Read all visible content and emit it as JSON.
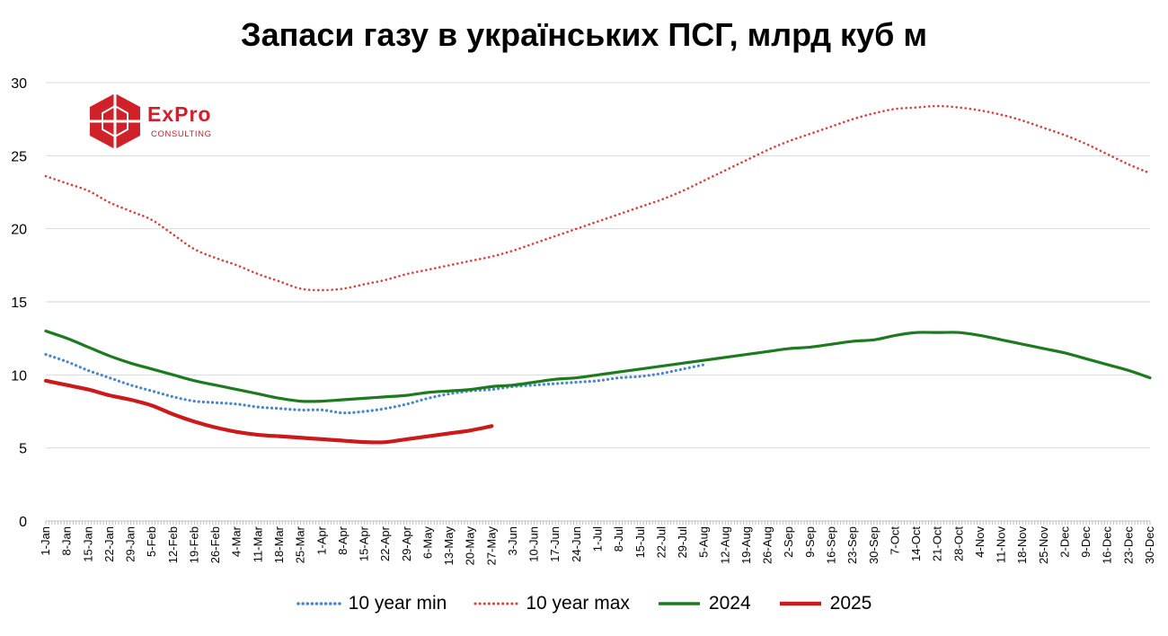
{
  "chart_data": {
    "type": "line",
    "title": "Запаси газу в українських ПСГ, млрд куб м",
    "ylim": [
      0,
      30
    ],
    "yticks": [
      "0",
      "5",
      "10",
      "15",
      "20",
      "25",
      "30"
    ],
    "grid": true,
    "legend_position": "bottom",
    "x_tick_labels": [
      "1-Jan",
      "8-Jan",
      "15-Jan",
      "22-Jan",
      "29-Jan",
      "5-Feb",
      "12-Feb",
      "19-Feb",
      "26-Feb",
      "4-Mar",
      "11-Mar",
      "18-Mar",
      "25-Mar",
      "1-Apr",
      "8-Apr",
      "15-Apr",
      "22-Apr",
      "29-Apr",
      "6-May",
      "13-May",
      "20-May",
      "27-May",
      "3-Jun",
      "10-Jun",
      "17-Jun",
      "24-Jun",
      "1-Jul",
      "8-Jul",
      "15-Jul",
      "22-Jul",
      "29-Jul",
      "5-Aug",
      "12-Aug",
      "19-Aug",
      "26-Aug",
      "2-Sep",
      "9-Sep",
      "16-Sep",
      "23-Sep",
      "30-Sep",
      "7-Oct",
      "14-Oct",
      "21-Oct",
      "28-Oct",
      "4-Nov",
      "11-Nov",
      "18-Nov",
      "25-Nov",
      "2-Dec",
      "9-Dec",
      "16-Dec",
      "23-Dec",
      "30-Dec"
    ],
    "series": [
      {
        "name": "10 year min",
        "color": "#4a86c8",
        "style": "dotted",
        "x": [
          "1-Jan",
          "8-Jan",
          "15-Jan",
          "22-Jan",
          "29-Jan",
          "5-Feb",
          "12-Feb",
          "19-Feb",
          "26-Feb",
          "4-Mar",
          "11-Mar",
          "18-Mar",
          "25-Mar",
          "1-Apr",
          "8-Apr",
          "15-Apr",
          "22-Apr",
          "29-Apr",
          "6-May",
          "13-May",
          "20-May",
          "27-May",
          "3-Jun",
          "10-Jun",
          "17-Jun",
          "24-Jun",
          "1-Jul",
          "8-Jul",
          "15-Jul",
          "22-Jul",
          "29-Jul",
          "5-Aug"
        ],
        "values": [
          11.4,
          10.9,
          10.3,
          9.8,
          9.3,
          8.9,
          8.5,
          8.2,
          8.1,
          8.0,
          7.8,
          7.7,
          7.6,
          7.6,
          7.4,
          7.5,
          7.7,
          8.0,
          8.4,
          8.7,
          8.9,
          9.0,
          9.2,
          9.3,
          9.4,
          9.5,
          9.6,
          9.8,
          9.9,
          10.1,
          10.4,
          10.7
        ]
      },
      {
        "name": "10 year max",
        "color": "#d84040",
        "style": "dotted",
        "x": [
          "1-Jan",
          "8-Jan",
          "15-Jan",
          "22-Jan",
          "29-Jan",
          "5-Feb",
          "12-Feb",
          "19-Feb",
          "26-Feb",
          "4-Mar",
          "11-Mar",
          "18-Mar",
          "25-Mar",
          "1-Apr",
          "8-Apr",
          "15-Apr",
          "22-Apr",
          "29-Apr",
          "6-May",
          "13-May",
          "20-May",
          "27-May",
          "3-Jun",
          "10-Jun",
          "17-Jun",
          "24-Jun",
          "1-Jul",
          "8-Jul",
          "15-Jul",
          "22-Jul",
          "29-Jul",
          "5-Aug",
          "12-Aug",
          "19-Aug",
          "26-Aug",
          "2-Sep",
          "9-Sep",
          "16-Sep",
          "23-Sep",
          "30-Sep",
          "7-Oct",
          "14-Oct",
          "21-Oct",
          "28-Oct",
          "4-Nov",
          "11-Nov",
          "18-Nov",
          "25-Nov",
          "2-Dec",
          "9-Dec",
          "16-Dec",
          "23-Dec",
          "30-Dec"
        ],
        "values": [
          23.6,
          23.1,
          22.6,
          21.8,
          21.2,
          20.6,
          19.6,
          18.6,
          18.0,
          17.5,
          16.9,
          16.4,
          15.9,
          15.8,
          15.9,
          16.2,
          16.5,
          16.9,
          17.2,
          17.5,
          17.8,
          18.1,
          18.5,
          19.0,
          19.5,
          20.0,
          20.5,
          21.0,
          21.5,
          22.0,
          22.6,
          23.3,
          24.0,
          24.7,
          25.4,
          26.0,
          26.5,
          27.0,
          27.5,
          27.9,
          28.2,
          28.3,
          28.4,
          28.3,
          28.1,
          27.8,
          27.4,
          26.9,
          26.4,
          25.8,
          25.1,
          24.4,
          23.8
        ]
      },
      {
        "name": "2024",
        "color": "#1e7a1e",
        "style": "solid",
        "x": [
          "1-Jan",
          "8-Jan",
          "15-Jan",
          "22-Jan",
          "29-Jan",
          "5-Feb",
          "12-Feb",
          "19-Feb",
          "26-Feb",
          "4-Mar",
          "11-Mar",
          "18-Mar",
          "25-Mar",
          "1-Apr",
          "8-Apr",
          "15-Apr",
          "22-Apr",
          "29-Apr",
          "6-May",
          "13-May",
          "20-May",
          "27-May",
          "3-Jun",
          "10-Jun",
          "17-Jun",
          "24-Jun",
          "1-Jul",
          "8-Jul",
          "15-Jul",
          "22-Jul",
          "29-Jul",
          "5-Aug",
          "12-Aug",
          "19-Aug",
          "26-Aug",
          "2-Sep",
          "9-Sep",
          "16-Sep",
          "23-Sep",
          "30-Sep",
          "7-Oct",
          "14-Oct",
          "21-Oct",
          "28-Oct",
          "4-Nov",
          "11-Nov",
          "18-Nov",
          "25-Nov",
          "2-Dec",
          "9-Dec",
          "16-Dec",
          "23-Dec",
          "30-Dec"
        ],
        "values": [
          13.0,
          12.5,
          11.9,
          11.3,
          10.8,
          10.4,
          10.0,
          9.6,
          9.3,
          9.0,
          8.7,
          8.4,
          8.2,
          8.2,
          8.3,
          8.4,
          8.5,
          8.6,
          8.8,
          8.9,
          9.0,
          9.2,
          9.3,
          9.5,
          9.7,
          9.8,
          10.0,
          10.2,
          10.4,
          10.6,
          10.8,
          11.0,
          11.2,
          11.4,
          11.6,
          11.8,
          11.9,
          12.1,
          12.3,
          12.4,
          12.7,
          12.9,
          12.9,
          12.9,
          12.7,
          12.4,
          12.1,
          11.8,
          11.5,
          11.1,
          10.7,
          10.3,
          9.8
        ]
      },
      {
        "name": "2025",
        "color": "#cc1a1a",
        "style": "solid",
        "x": [
          "1-Jan",
          "8-Jan",
          "15-Jan",
          "22-Jan",
          "29-Jan",
          "5-Feb",
          "12-Feb",
          "19-Feb",
          "26-Feb",
          "4-Mar",
          "11-Mar",
          "18-Mar",
          "25-Mar",
          "1-Apr",
          "8-Apr",
          "15-Apr",
          "22-Apr",
          "29-Apr",
          "6-May",
          "13-May",
          "20-May",
          "27-May"
        ],
        "values": [
          9.6,
          9.3,
          9.0,
          8.6,
          8.3,
          7.9,
          7.3,
          6.8,
          6.4,
          6.1,
          5.9,
          5.8,
          5.7,
          5.6,
          5.5,
          5.4,
          5.4,
          5.6,
          5.8,
          6.0,
          6.2,
          6.5
        ]
      }
    ]
  },
  "logo": {
    "word": "ExPro",
    "sub": "CONSULTING",
    "color": "#d0202a"
  },
  "legend": [
    {
      "label": "10 year min",
      "color": "#4a86c8",
      "style": "dotted"
    },
    {
      "label": "10 year max",
      "color": "#d84040",
      "style": "dotted"
    },
    {
      "label": "2024",
      "color": "#1e7a1e",
      "style": "solid"
    },
    {
      "label": "2025",
      "color": "#cc1a1a",
      "style": "solid"
    }
  ]
}
